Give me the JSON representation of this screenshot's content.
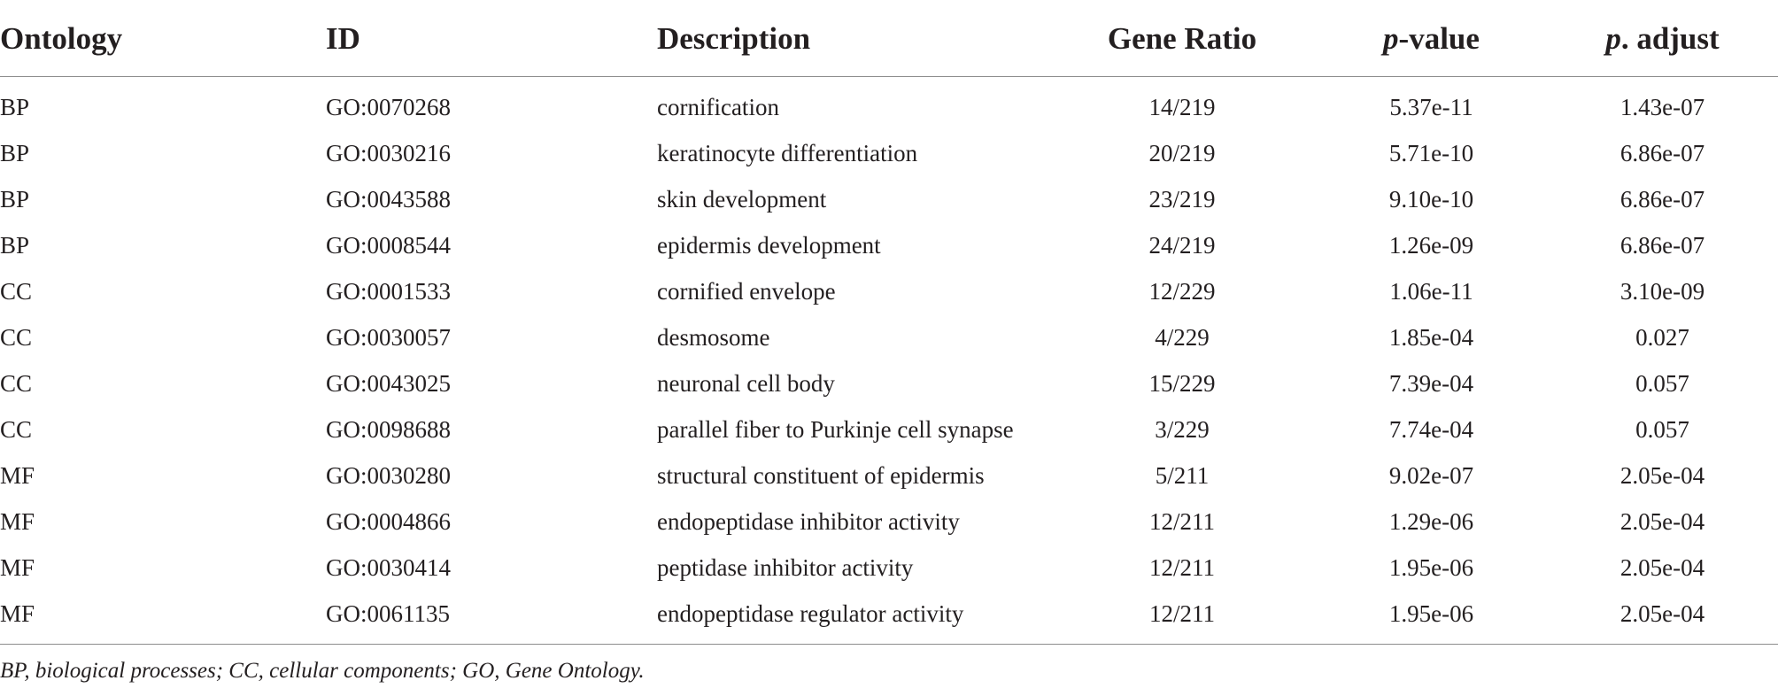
{
  "table": {
    "headers": {
      "ontology": "Ontology",
      "id": "ID",
      "description": "Description",
      "gene_ratio": "Gene Ratio",
      "p_value_prefix": "p",
      "p_value_suffix": "-value",
      "p_adjust_prefix": "p",
      "p_adjust_suffix": ". adjust"
    },
    "rows": [
      {
        "ontology": "BP",
        "id": "GO:0070268",
        "description": "cornification",
        "gene_ratio": "14/219",
        "p_value": "5.37e-11",
        "p_adjust": "1.43e-07"
      },
      {
        "ontology": "BP",
        "id": "GO:0030216",
        "description": "keratinocyte differentiation",
        "gene_ratio": "20/219",
        "p_value": "5.71e-10",
        "p_adjust": "6.86e-07"
      },
      {
        "ontology": "BP",
        "id": "GO:0043588",
        "description": "skin development",
        "gene_ratio": "23/219",
        "p_value": "9.10e-10",
        "p_adjust": "6.86e-07"
      },
      {
        "ontology": "BP",
        "id": "GO:0008544",
        "description": "epidermis development",
        "gene_ratio": "24/219",
        "p_value": "1.26e-09",
        "p_adjust": "6.86e-07"
      },
      {
        "ontology": "CC",
        "id": "GO:0001533",
        "description": "cornified envelope",
        "gene_ratio": "12/229",
        "p_value": "1.06e-11",
        "p_adjust": "3.10e-09"
      },
      {
        "ontology": "CC",
        "id": "GO:0030057",
        "description": "desmosome",
        "gene_ratio": "4/229",
        "p_value": "1.85e-04",
        "p_adjust": "0.027"
      },
      {
        "ontology": "CC",
        "id": "GO:0043025",
        "description": "neuronal cell body",
        "gene_ratio": "15/229",
        "p_value": "7.39e-04",
        "p_adjust": "0.057"
      },
      {
        "ontology": "CC",
        "id": "GO:0098688",
        "description": "parallel fiber to Purkinje cell synapse",
        "gene_ratio": "3/229",
        "p_value": "7.74e-04",
        "p_adjust": "0.057"
      },
      {
        "ontology": "MF",
        "id": "GO:0030280",
        "description": "structural constituent of epidermis",
        "gene_ratio": "5/211",
        "p_value": "9.02e-07",
        "p_adjust": "2.05e-04"
      },
      {
        "ontology": "MF",
        "id": "GO:0004866",
        "description": "endopeptidase inhibitor activity",
        "gene_ratio": "12/211",
        "p_value": "1.29e-06",
        "p_adjust": "2.05e-04"
      },
      {
        "ontology": "MF",
        "id": "GO:0030414",
        "description": "peptidase inhibitor activity",
        "gene_ratio": "12/211",
        "p_value": "1.95e-06",
        "p_adjust": "2.05e-04"
      },
      {
        "ontology": "MF",
        "id": "GO:0061135",
        "description": "endopeptidase regulator activity",
        "gene_ratio": "12/211",
        "p_value": "1.95e-06",
        "p_adjust": "2.05e-04"
      }
    ]
  },
  "footnote": "BP, biological processes; CC, cellular components; GO, Gene Ontology.",
  "colors": {
    "text": "#231f20",
    "rule": "#8c8c8c",
    "background": "#ffffff"
  }
}
